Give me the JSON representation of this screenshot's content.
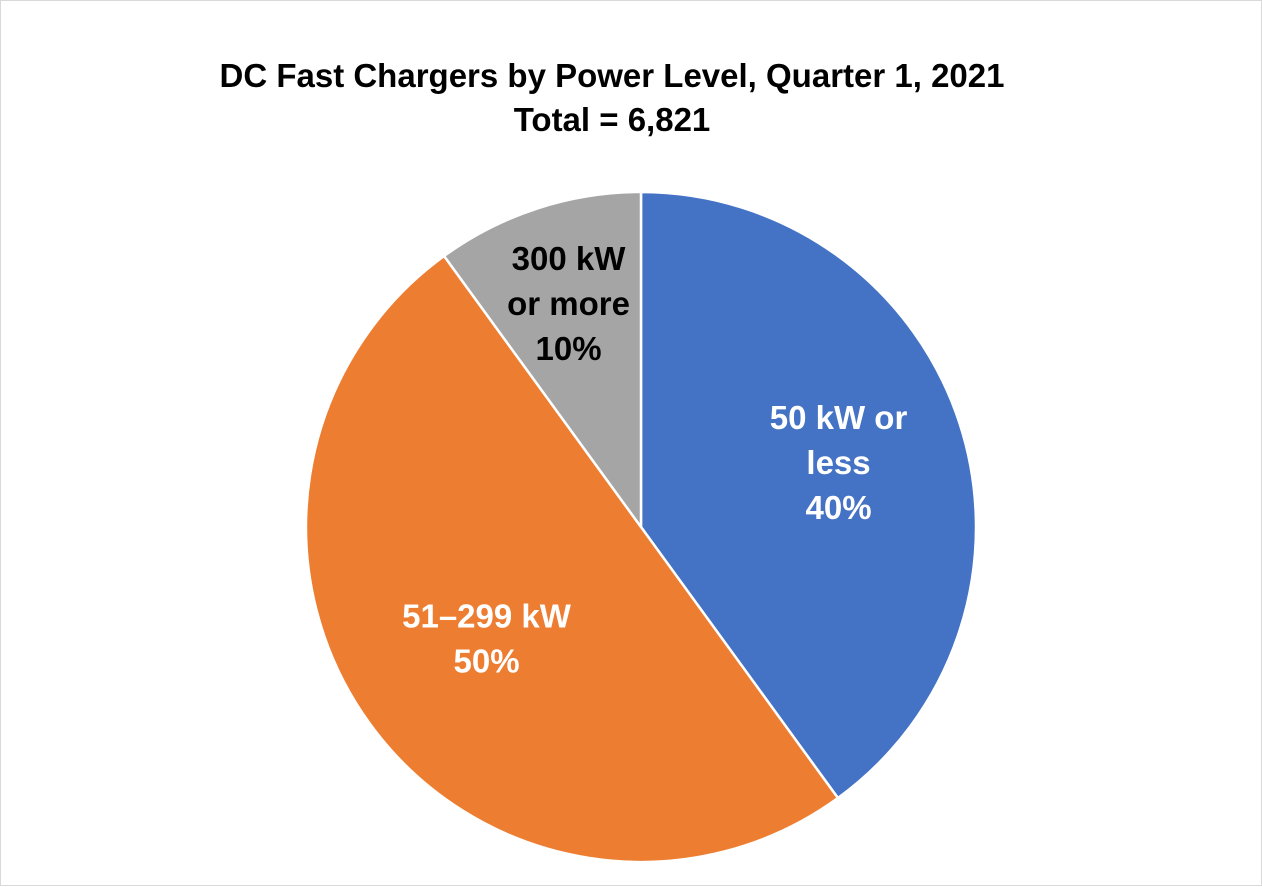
{
  "chart_data": {
    "type": "pie",
    "title": "DC Fast Chargers by Power Level, Quarter 1, 2021",
    "subtitle": "Total = 6,821",
    "slices": [
      {
        "label_lines": [
          "50 kW or",
          "less"
        ],
        "value": 40,
        "percent_label": "40%",
        "color": "#4472c4",
        "label_color": "#ffffff"
      },
      {
        "label_lines": [
          "51–299 kW"
        ],
        "value": 50,
        "percent_label": "50%",
        "color": "#ed7d31",
        "label_color": "#ffffff"
      },
      {
        "label_lines": [
          "300 kW",
          "or more"
        ],
        "value": 10,
        "percent_label": "10%",
        "color": "#a5a5a5",
        "label_color": "#000000"
      }
    ],
    "start_angle": "12 o'clock",
    "direction": "clockwise",
    "legend": "none"
  }
}
